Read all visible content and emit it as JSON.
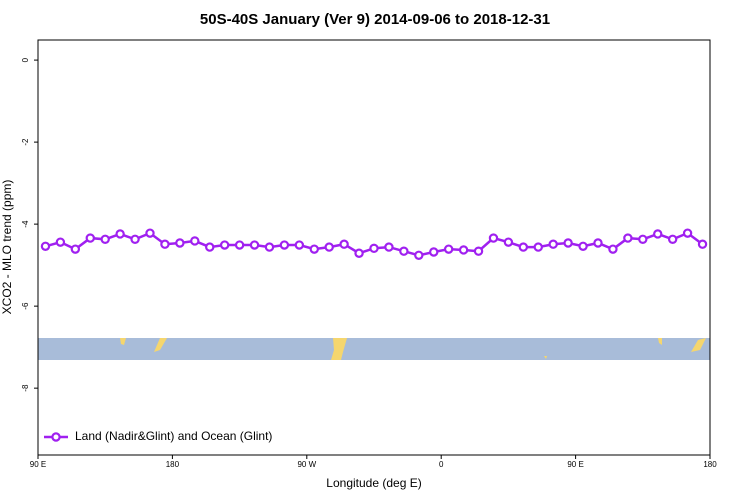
{
  "chart_data": {
    "type": "line",
    "title": "50S-40S January (Ver 9)   2014-09-06 to 2018-12-31",
    "xlabel": "Longitude (deg E)",
    "ylabel": "XCO2 - MLO trend (ppm)",
    "x": [
      95,
      105,
      115,
      125,
      135,
      145,
      155,
      165,
      175,
      185,
      195,
      205,
      215,
      225,
      235,
      245,
      255,
      265,
      275,
      285,
      295,
      305,
      315,
      325,
      335,
      345,
      355,
      365,
      375,
      385,
      395,
      405,
      415,
      425,
      435,
      445,
      455,
      465,
      475,
      485,
      495,
      505,
      515,
      525,
      535
    ],
    "series": [
      {
        "name": "Land (Nadir&Glint) and Ocean (Glint)",
        "color": "#a020f0",
        "values": [
          -4.54,
          -4.44,
          -4.61,
          -4.34,
          -4.37,
          -4.24,
          -4.37,
          -4.22,
          -4.49,
          -4.46,
          -4.41,
          -4.56,
          -4.51,
          -4.51,
          -4.51,
          -4.56,
          -4.51,
          -4.51,
          -4.61,
          -4.56,
          -4.49,
          -4.71,
          -4.59,
          -4.56,
          -4.66,
          -4.76,
          -4.68,
          -4.61,
          -4.63,
          -4.66,
          -4.34,
          -4.44,
          -4.56,
          -4.56,
          -4.49,
          -4.46,
          -4.54,
          -4.46,
          -4.61,
          -4.34,
          -4.37,
          -4.24,
          -4.37,
          -4.22,
          -4.49
        ]
      }
    ],
    "xlim": [
      90,
      540
    ],
    "xticks": [
      {
        "value": 90,
        "label": "90 E"
      },
      180,
      {
        "value": 270,
        "label": "90 W"
      },
      {
        "value": 360,
        "label": "0"
      },
      {
        "value": 450,
        "label": "90 E"
      },
      {
        "value": 540,
        "label": "180"
      }
    ],
    "ylim": [
      -9.63,
      0.49
    ],
    "yticks": [
      0,
      -2,
      -4,
      -6,
      -8
    ],
    "legend": "bottom-left"
  }
}
